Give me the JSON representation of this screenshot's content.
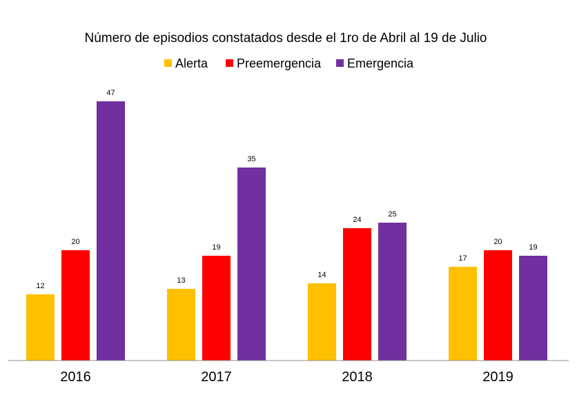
{
  "chart_data": {
    "type": "bar",
    "title": "Número de episodios constatados desde el 1ro de Abril al 19 de Julio",
    "xlabel": "",
    "ylabel": "",
    "categories": [
      "2016",
      "2017",
      "2018",
      "2019"
    ],
    "series": [
      {
        "name": "Alerta",
        "color": "#FFC000",
        "values": [
          12,
          13,
          14,
          17
        ]
      },
      {
        "name": "Preemergencia",
        "color": "#FF0000",
        "values": [
          20,
          19,
          24,
          20
        ]
      },
      {
        "name": "Emergencia",
        "color": "#7030A0",
        "values": [
          47,
          35,
          25,
          19
        ]
      }
    ],
    "ylim": [
      0,
      50
    ],
    "grid": false,
    "legend_position": "top",
    "data_labels": true
  }
}
